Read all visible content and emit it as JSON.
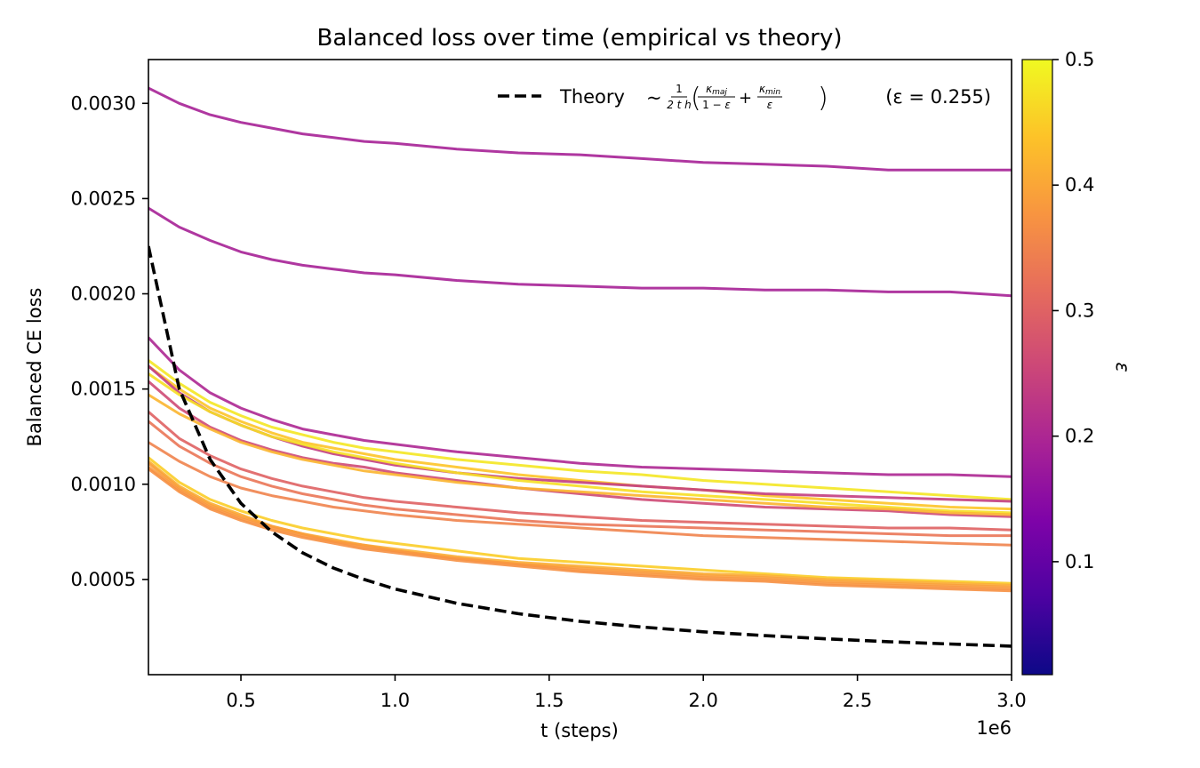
{
  "chart_data": {
    "type": "line",
    "title": "Balanced loss over time (empirical vs theory)",
    "xlabel": "t (steps)",
    "ylabel": "Balanced CE loss",
    "x_offset_label": "1e6",
    "x_scale": 1000000,
    "xlim": [
      0.2,
      3.0
    ],
    "ylim": [
      0.0,
      0.00323
    ],
    "x_ticks": [
      0.5,
      1.0,
      1.5,
      2.0,
      2.5,
      3.0
    ],
    "x_tick_labels": [
      "0.5",
      "1.0",
      "1.5",
      "2.0",
      "2.5",
      "3.0"
    ],
    "y_ticks": [
      0.0005,
      0.001,
      0.0015,
      0.002,
      0.0025,
      0.003
    ],
    "y_tick_labels": [
      "0.0005",
      "0.0010",
      "0.0015",
      "0.0020",
      "0.0025",
      "0.0030"
    ],
    "grid": false,
    "legend": {
      "placement": "top-right",
      "theory_label": "Theory",
      "epsilon_note": "(ε = 0.255)"
    },
    "colorbar": {
      "label": "ε",
      "min": 0.01,
      "max": 0.5,
      "ticks": [
        0.1,
        0.2,
        0.3,
        0.4,
        0.5
      ],
      "tick_labels": [
        "0.1",
        "0.2",
        "0.3",
        "0.4",
        "0.5"
      ],
      "colormap": "plasma"
    },
    "x": [
      0.2,
      0.3,
      0.4,
      0.5,
      0.6,
      0.7,
      0.8,
      0.9,
      1.0,
      1.2,
      1.4,
      1.6,
      1.8,
      2.0,
      2.2,
      2.4,
      2.6,
      2.8,
      3.0
    ],
    "series": [
      {
        "kind": "empirical",
        "eps": 0.19,
        "values": [
          0.00308,
          0.003,
          0.00294,
          0.0029,
          0.00287,
          0.00284,
          0.00282,
          0.0028,
          0.00279,
          0.00276,
          0.00274,
          0.00273,
          0.00271,
          0.00269,
          0.00268,
          0.00267,
          0.00265,
          0.00265,
          0.00265
        ]
      },
      {
        "kind": "empirical",
        "eps": 0.19,
        "values": [
          0.00245,
          0.00235,
          0.00228,
          0.00222,
          0.00218,
          0.00215,
          0.00213,
          0.00211,
          0.0021,
          0.00207,
          0.00205,
          0.00204,
          0.00203,
          0.00203,
          0.00202,
          0.00202,
          0.00201,
          0.00201,
          0.00199
        ]
      },
      {
        "kind": "empirical",
        "eps": 0.2,
        "values": [
          0.00177,
          0.0016,
          0.00148,
          0.0014,
          0.00134,
          0.00129,
          0.00126,
          0.00123,
          0.00121,
          0.00117,
          0.00114,
          0.00111,
          0.00109,
          0.00108,
          0.00107,
          0.00106,
          0.00105,
          0.00105,
          0.00104
        ]
      },
      {
        "kind": "empirical",
        "eps": 0.48,
        "values": [
          0.00165,
          0.00153,
          0.00143,
          0.00136,
          0.0013,
          0.00126,
          0.00122,
          0.00119,
          0.00117,
          0.00113,
          0.0011,
          0.00107,
          0.00105,
          0.00102,
          0.001,
          0.00098,
          0.00096,
          0.00094,
          0.00092
        ]
      },
      {
        "kind": "empirical",
        "eps": 0.44,
        "values": [
          0.00162,
          0.0015,
          0.0014,
          0.00133,
          0.00127,
          0.00122,
          0.00119,
          0.00116,
          0.00113,
          0.00109,
          0.00105,
          0.00102,
          0.00099,
          0.00097,
          0.00094,
          0.00092,
          0.0009,
          0.00088,
          0.00087
        ]
      },
      {
        "kind": "empirical",
        "eps": 0.24,
        "values": [
          0.00162,
          0.00148,
          0.00138,
          0.00131,
          0.00125,
          0.0012,
          0.00116,
          0.00113,
          0.0011,
          0.00106,
          0.00103,
          0.00101,
          0.00099,
          0.00097,
          0.00095,
          0.00094,
          0.00093,
          0.00092,
          0.00091
        ]
      },
      {
        "kind": "empirical",
        "eps": 0.47,
        "values": [
          0.00158,
          0.00147,
          0.00138,
          0.00131,
          0.00125,
          0.00121,
          0.00117,
          0.00114,
          0.00111,
          0.00106,
          0.00102,
          0.00099,
          0.00096,
          0.00094,
          0.00092,
          0.0009,
          0.00088,
          0.00086,
          0.00085
        ]
      },
      {
        "kind": "empirical",
        "eps": 0.26,
        "values": [
          0.00154,
          0.0014,
          0.0013,
          0.00123,
          0.00118,
          0.00114,
          0.00111,
          0.00109,
          0.00106,
          0.00102,
          0.00098,
          0.00095,
          0.00092,
          0.0009,
          0.00088,
          0.00087,
          0.00086,
          0.00084,
          0.00083
        ]
      },
      {
        "kind": "empirical",
        "eps": 0.42,
        "values": [
          0.00147,
          0.00137,
          0.00129,
          0.00122,
          0.00117,
          0.00113,
          0.0011,
          0.00107,
          0.00105,
          0.00101,
          0.00098,
          0.00096,
          0.00094,
          0.00092,
          0.0009,
          0.00088,
          0.00087,
          0.00085,
          0.00084
        ]
      },
      {
        "kind": "empirical",
        "eps": 0.3,
        "values": [
          0.00138,
          0.00124,
          0.00115,
          0.00108,
          0.00103,
          0.00099,
          0.00096,
          0.00093,
          0.00091,
          0.00088,
          0.00085,
          0.00083,
          0.00081,
          0.0008,
          0.00079,
          0.00078,
          0.00077,
          0.00077,
          0.00076
        ]
      },
      {
        "kind": "empirical",
        "eps": 0.33,
        "values": [
          0.00133,
          0.0012,
          0.00111,
          0.00104,
          0.00099,
          0.00095,
          0.00092,
          0.00089,
          0.00087,
          0.00084,
          0.00081,
          0.00079,
          0.00078,
          0.00077,
          0.00076,
          0.00075,
          0.00074,
          0.00073,
          0.00073
        ]
      },
      {
        "kind": "empirical",
        "eps": 0.35,
        "values": [
          0.00122,
          0.00112,
          0.00104,
          0.00098,
          0.00094,
          0.00091,
          0.00088,
          0.00086,
          0.00084,
          0.00081,
          0.00079,
          0.00077,
          0.00075,
          0.00073,
          0.00072,
          0.00071,
          0.0007,
          0.00069,
          0.00068
        ]
      },
      {
        "kind": "empirical",
        "eps": 0.45,
        "values": [
          0.00114,
          0.00101,
          0.00092,
          0.00086,
          0.00081,
          0.00077,
          0.00074,
          0.00071,
          0.00069,
          0.00065,
          0.00061,
          0.00059,
          0.00057,
          0.00055,
          0.00053,
          0.00051,
          0.0005,
          0.00049,
          0.00048
        ]
      },
      {
        "kind": "empirical",
        "eps": 0.41,
        "values": [
          0.00112,
          0.00099,
          0.0009,
          0.00084,
          0.00078,
          0.00074,
          0.00071,
          0.00068,
          0.00066,
          0.00062,
          0.00059,
          0.00057,
          0.00055,
          0.00053,
          0.00052,
          0.0005,
          0.00049,
          0.00048,
          0.00047
        ]
      },
      {
        "kind": "empirical",
        "eps": 0.39,
        "values": [
          0.00111,
          0.00098,
          0.00089,
          0.00083,
          0.00078,
          0.00074,
          0.0007,
          0.00068,
          0.00065,
          0.00061,
          0.00058,
          0.00056,
          0.00054,
          0.00052,
          0.00051,
          0.00049,
          0.00048,
          0.00047,
          0.00046
        ]
      },
      {
        "kind": "empirical",
        "eps": 0.38,
        "values": [
          0.00109,
          0.00097,
          0.00088,
          0.00082,
          0.00077,
          0.00073,
          0.0007,
          0.00067,
          0.00065,
          0.00061,
          0.00058,
          0.00055,
          0.00053,
          0.00051,
          0.0005,
          0.00048,
          0.00047,
          0.00046,
          0.00045
        ]
      },
      {
        "kind": "empirical",
        "eps": 0.37,
        "values": [
          0.00108,
          0.00096,
          0.00087,
          0.00081,
          0.00076,
          0.00072,
          0.00069,
          0.00066,
          0.00064,
          0.0006,
          0.00057,
          0.00054,
          0.00052,
          0.0005,
          0.00049,
          0.00047,
          0.00046,
          0.00045,
          0.00044
        ]
      },
      {
        "kind": "theory",
        "name": "Theory",
        "values": [
          0.00225,
          0.0015,
          0.00113,
          0.0009,
          0.00075,
          0.00064,
          0.00056,
          0.0005,
          0.00045,
          0.000375,
          0.00032,
          0.00028,
          0.00025,
          0.000225,
          0.000205,
          0.000188,
          0.000173,
          0.000161,
          0.00015
        ]
      }
    ]
  }
}
